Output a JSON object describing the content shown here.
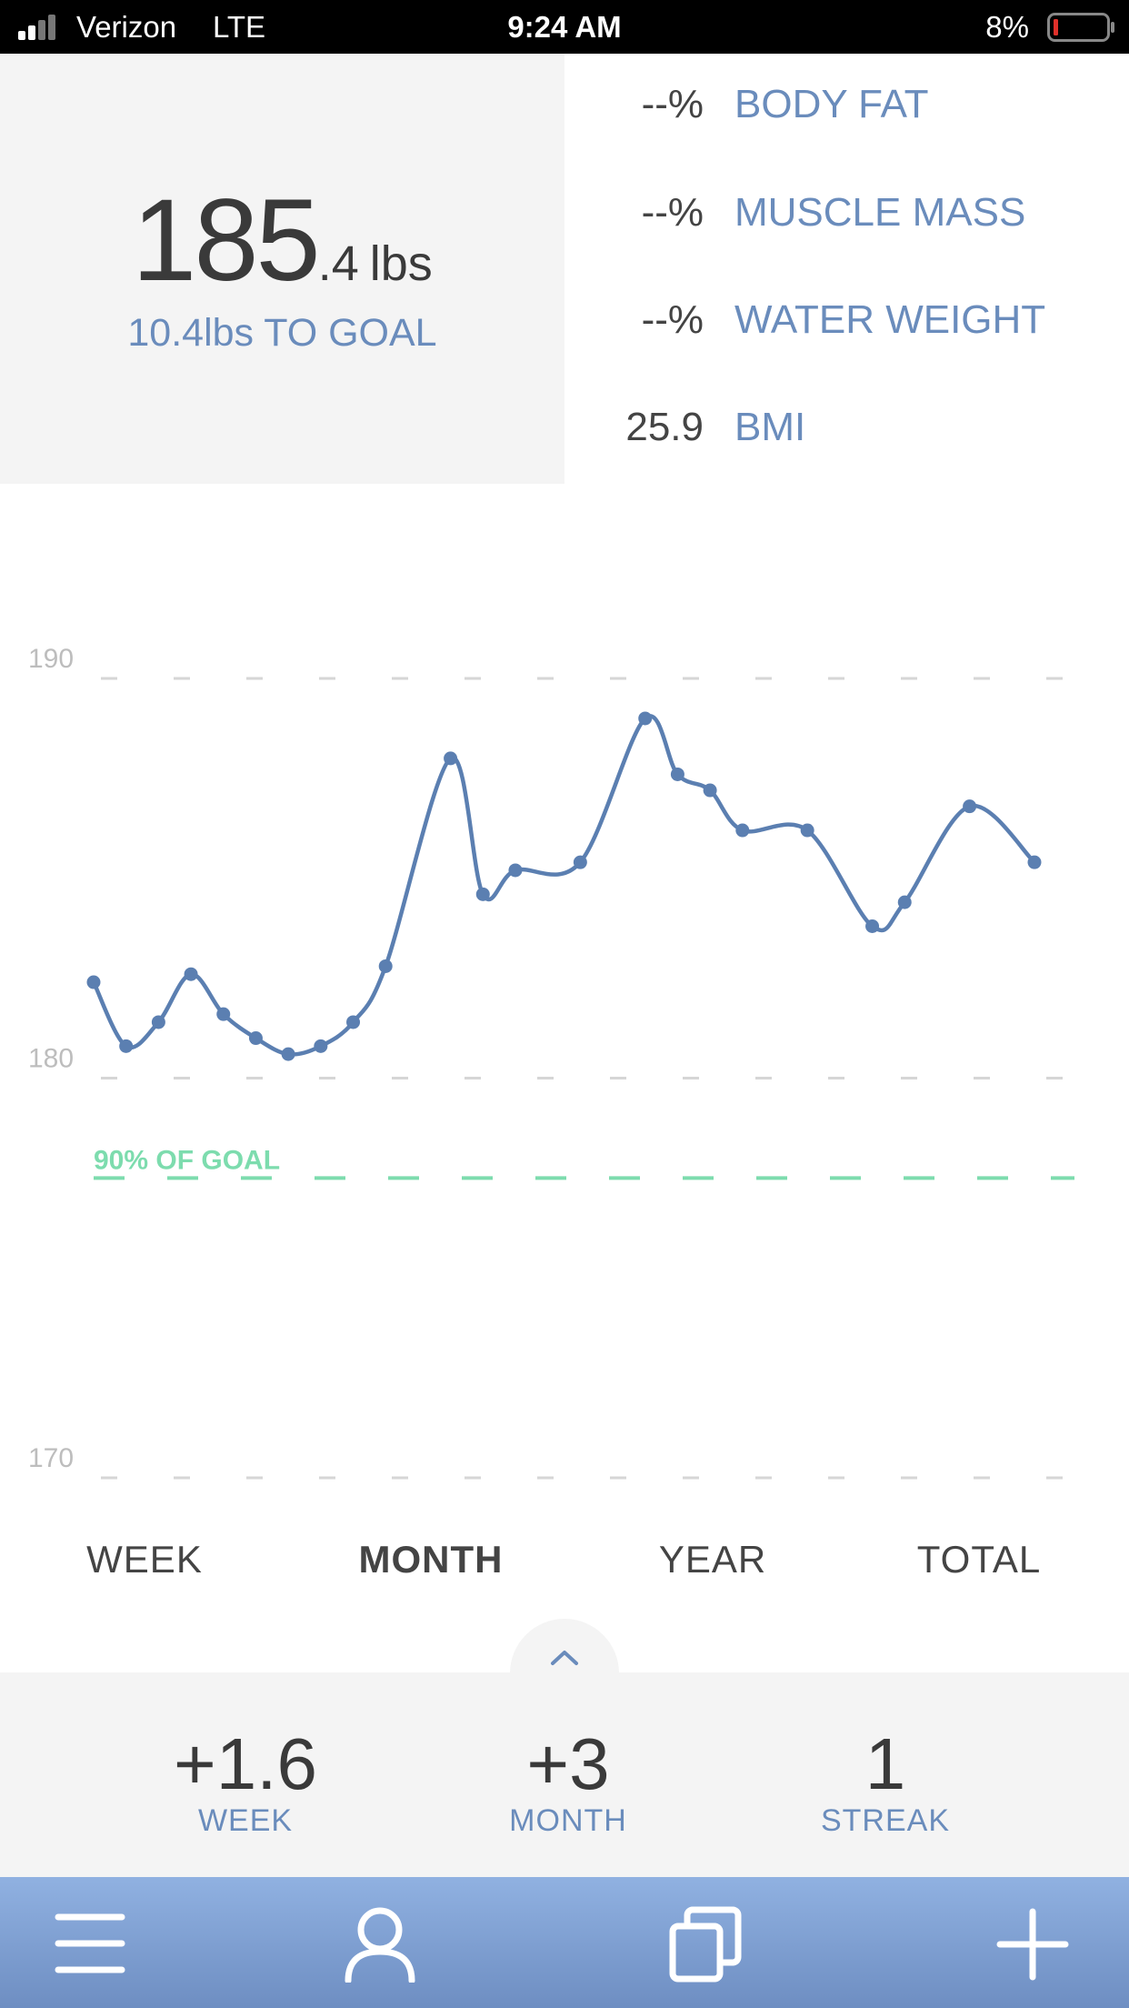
{
  "status_bar": {
    "carrier": "Verizon",
    "network": "LTE",
    "time": "9:24 AM",
    "battery": "8%"
  },
  "summary": {
    "weight_whole": "185",
    "weight_decimal": ".4",
    "weight_unit": "lbs",
    "to_goal": "10.4lbs TO GOAL"
  },
  "metrics": [
    {
      "value": "--%",
      "label": "BODY FAT"
    },
    {
      "value": "--%",
      "label": "MUSCLE MASS"
    },
    {
      "value": "--%",
      "label": "WATER WEIGHT"
    },
    {
      "value": "25.9",
      "label": "BMI"
    }
  ],
  "chart_data": {
    "type": "line",
    "x": [
      0,
      1,
      2,
      3,
      4,
      5,
      6,
      7,
      8,
      9,
      11,
      12,
      13,
      15,
      17,
      18,
      19,
      20,
      22,
      24,
      25,
      27,
      29
    ],
    "xlim": [
      0,
      29
    ],
    "ylim": [
      170,
      190
    ],
    "yticks": [
      170,
      180,
      190
    ],
    "grid": true,
    "series": [
      {
        "color": "#5b7fb1",
        "values": [
          182.4,
          180.8,
          181.4,
          182.6,
          181.6,
          181.0,
          180.6,
          180.8,
          181.4,
          182.8,
          188.0,
          184.6,
          185.2,
          185.4,
          189.0,
          187.6,
          187.2,
          186.2,
          186.2,
          183.8,
          184.4,
          186.8,
          185.4
        ]
      }
    ],
    "annotations": [
      {
        "label": "90% OF GOAL",
        "value": 177.5,
        "color": "#7ddcae"
      }
    ]
  },
  "tabs": [
    "WEEK",
    "MONTH",
    "YEAR",
    "TOTAL"
  ],
  "selected_tab": 1,
  "stats": [
    {
      "value": "+1.6",
      "label": "WEEK"
    },
    {
      "value": "+3",
      "label": "MONTH"
    },
    {
      "value": "1",
      "label": "STREAK"
    }
  ]
}
